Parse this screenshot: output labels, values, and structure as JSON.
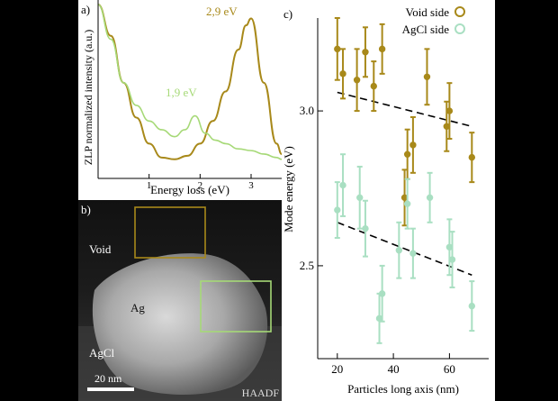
{
  "colors": {
    "void": "#a8891a",
    "agcl": "#a9dfc2",
    "agcl_line": "#a6d977"
  },
  "panel_a": {
    "label": "a)",
    "ylabel": "ZLP normalized intensity (a.u.)",
    "xlabel": "Energy loss (eV)",
    "annotations": [
      "2,9 eV",
      "1,9 eV"
    ]
  },
  "panel_b": {
    "label": "b)",
    "labels": {
      "void": "Void",
      "ag": "Ag",
      "agcl": "AgCl",
      "scale": "20 nm",
      "mode": "HAADF"
    }
  },
  "chart_data": [
    {
      "type": "line",
      "xlabel": "Energy loss (eV)",
      "ylabel": "ZLP normalized intensity (a.u.)",
      "xlim": [
        0,
        3.6
      ],
      "x_ticks": [
        1,
        2,
        3
      ],
      "series": [
        {
          "color": "#a8891a",
          "x": [
            0.0,
            0.25,
            0.5,
            0.75,
            1.0,
            1.25,
            1.5,
            1.75,
            2.0,
            2.25,
            2.5,
            2.75,
            2.9,
            3.0,
            3.25,
            3.5,
            3.6
          ],
          "y": [
            1.0,
            0.82,
            0.55,
            0.35,
            0.2,
            0.12,
            0.11,
            0.13,
            0.2,
            0.33,
            0.5,
            0.74,
            0.88,
            0.92,
            0.55,
            0.2,
            0.14
          ]
        },
        {
          "color": "#a6d977",
          "x": [
            0.0,
            0.25,
            0.5,
            0.75,
            1.0,
            1.25,
            1.5,
            1.7,
            1.9,
            2.1,
            2.3,
            2.5,
            2.75,
            3.0,
            3.25,
            3.5,
            3.6
          ],
          "y": [
            1.0,
            0.8,
            0.55,
            0.42,
            0.33,
            0.28,
            0.24,
            0.28,
            0.36,
            0.26,
            0.22,
            0.2,
            0.17,
            0.16,
            0.14,
            0.12,
            0.11
          ]
        }
      ]
    },
    {
      "type": "scatter",
      "label": "c)",
      "xlabel": "Particles long axis (nm)",
      "ylabel": "Mode energy (eV)",
      "xlim": [
        13,
        74
      ],
      "ylim": [
        2.2,
        3.3
      ],
      "x_ticks": [
        20,
        40,
        60
      ],
      "y_ticks": [
        2.5,
        3.0
      ],
      "legend_position": "top-right",
      "series": [
        {
          "name": "Void side",
          "color": "#a8891a",
          "x": [
            20,
            22,
            27,
            30,
            33,
            36,
            44,
            45,
            47,
            52,
            59,
            60,
            68
          ],
          "y": [
            3.2,
            3.12,
            3.1,
            3.19,
            3.08,
            3.2,
            2.72,
            2.86,
            2.89,
            3.11,
            2.95,
            3.0,
            2.85
          ],
          "err": [
            0.1,
            0.08,
            0.1,
            0.08,
            0.08,
            0.08,
            0.09,
            0.08,
            0.09,
            0.09,
            0.08,
            0.09,
            0.08
          ],
          "fit_x": [
            20,
            68
          ],
          "fit_y": [
            3.06,
            2.95
          ]
        },
        {
          "name": "AgCl side",
          "color": "#a9dfc2",
          "x": [
            20,
            22,
            28,
            30,
            35,
            36,
            42,
            45,
            47,
            53,
            60,
            61,
            68
          ],
          "y": [
            2.68,
            2.76,
            2.72,
            2.62,
            2.33,
            2.41,
            2.55,
            2.7,
            2.54,
            2.72,
            2.56,
            2.52,
            2.37
          ],
          "err": [
            0.09,
            0.1,
            0.1,
            0.09,
            0.08,
            0.09,
            0.09,
            0.08,
            0.08,
            0.08,
            0.09,
            0.09,
            0.08
          ],
          "fit_x": [
            20,
            68
          ],
          "fit_y": [
            2.64,
            2.47
          ]
        }
      ]
    }
  ]
}
